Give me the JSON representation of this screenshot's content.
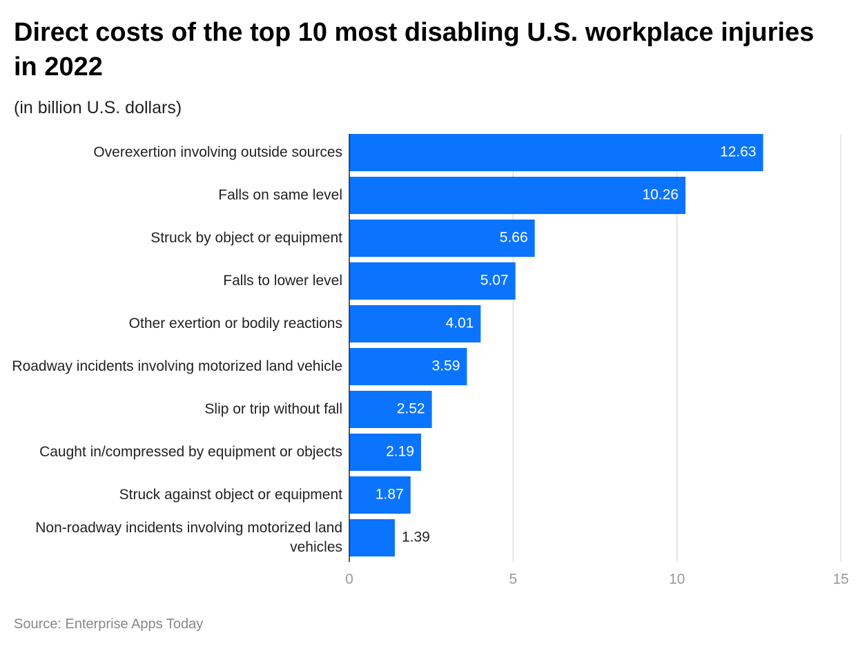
{
  "chart_data": {
    "type": "bar",
    "orientation": "horizontal",
    "title": "Direct costs of the top 10 most disabling U.S. workplace injuries in 2022",
    "subtitle": "(in billion U.S. dollars)",
    "source": "Source: Enterprise Apps Today",
    "categories": [
      "Overexertion involving outside sources",
      "Falls on same level",
      "Struck by object or equipment",
      "Falls to lower level",
      "Other exertion or bodily reactions",
      "Roadway incidents involving motorized land vehicle",
      "Slip or trip without fall",
      "Caught in/compressed by equipment or objects",
      "Struck against object or equipment",
      "Non-roadway incidents involving motorized land vehicles"
    ],
    "values": [
      12.63,
      10.26,
      5.66,
      5.07,
      4.01,
      3.59,
      2.52,
      2.19,
      1.87,
      1.39
    ],
    "color": "#0b74ff",
    "xlim": [
      0,
      15
    ],
    "xticks": [
      0,
      5,
      10,
      15
    ],
    "grid": true
  }
}
